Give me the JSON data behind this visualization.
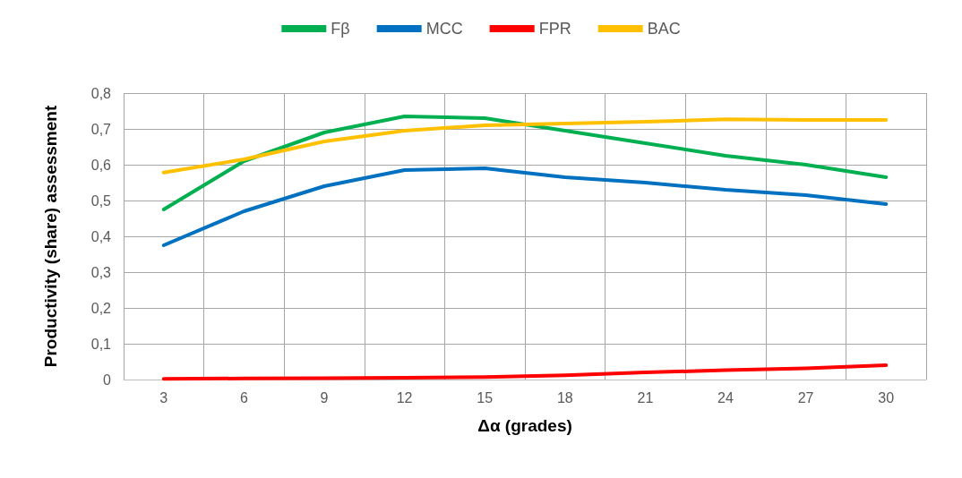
{
  "chart_data": {
    "type": "line",
    "xlabel": "Δα (grades)",
    "ylabel": "Productivity (share) assessment",
    "categories": [
      "3",
      "6",
      "9",
      "12",
      "15",
      "18",
      "21",
      "24",
      "27",
      "30"
    ],
    "series": [
      {
        "name": "Fβ",
        "color": "#00b050",
        "values": [
          0.475,
          0.61,
          0.69,
          0.735,
          0.73,
          0.695,
          0.66,
          0.625,
          0.6,
          0.565
        ]
      },
      {
        "name": "MCC",
        "color": "#0070c0",
        "values": [
          0.375,
          0.47,
          0.54,
          0.585,
          0.59,
          0.565,
          0.55,
          0.53,
          0.515,
          0.49
        ]
      },
      {
        "name": "FPR",
        "color": "#ff0000",
        "values": [
          0.002,
          0.003,
          0.004,
          0.005,
          0.007,
          0.012,
          0.02,
          0.026,
          0.031,
          0.04
        ]
      },
      {
        "name": "BAC",
        "color": "#ffc000",
        "values": [
          0.578,
          0.615,
          0.665,
          0.695,
          0.71,
          0.715,
          0.72,
          0.727,
          0.725,
          0.725
        ]
      }
    ],
    "ylim": [
      0,
      0.8
    ],
    "yticks": [
      {
        "value": 0,
        "label": "0"
      },
      {
        "value": 0.1,
        "label": "0,1"
      },
      {
        "value": 0.2,
        "label": "0,2"
      },
      {
        "value": 0.3,
        "label": "0,3"
      },
      {
        "value": 0.4,
        "label": "0,4"
      },
      {
        "value": 0.5,
        "label": "0,5"
      },
      {
        "value": 0.6,
        "label": "0,6"
      },
      {
        "value": 0.7,
        "label": "0,7"
      },
      {
        "value": 0.8,
        "label": "0,8"
      }
    ],
    "grid": true,
    "legend": "top",
    "marker": "none",
    "line_style": "solid"
  }
}
